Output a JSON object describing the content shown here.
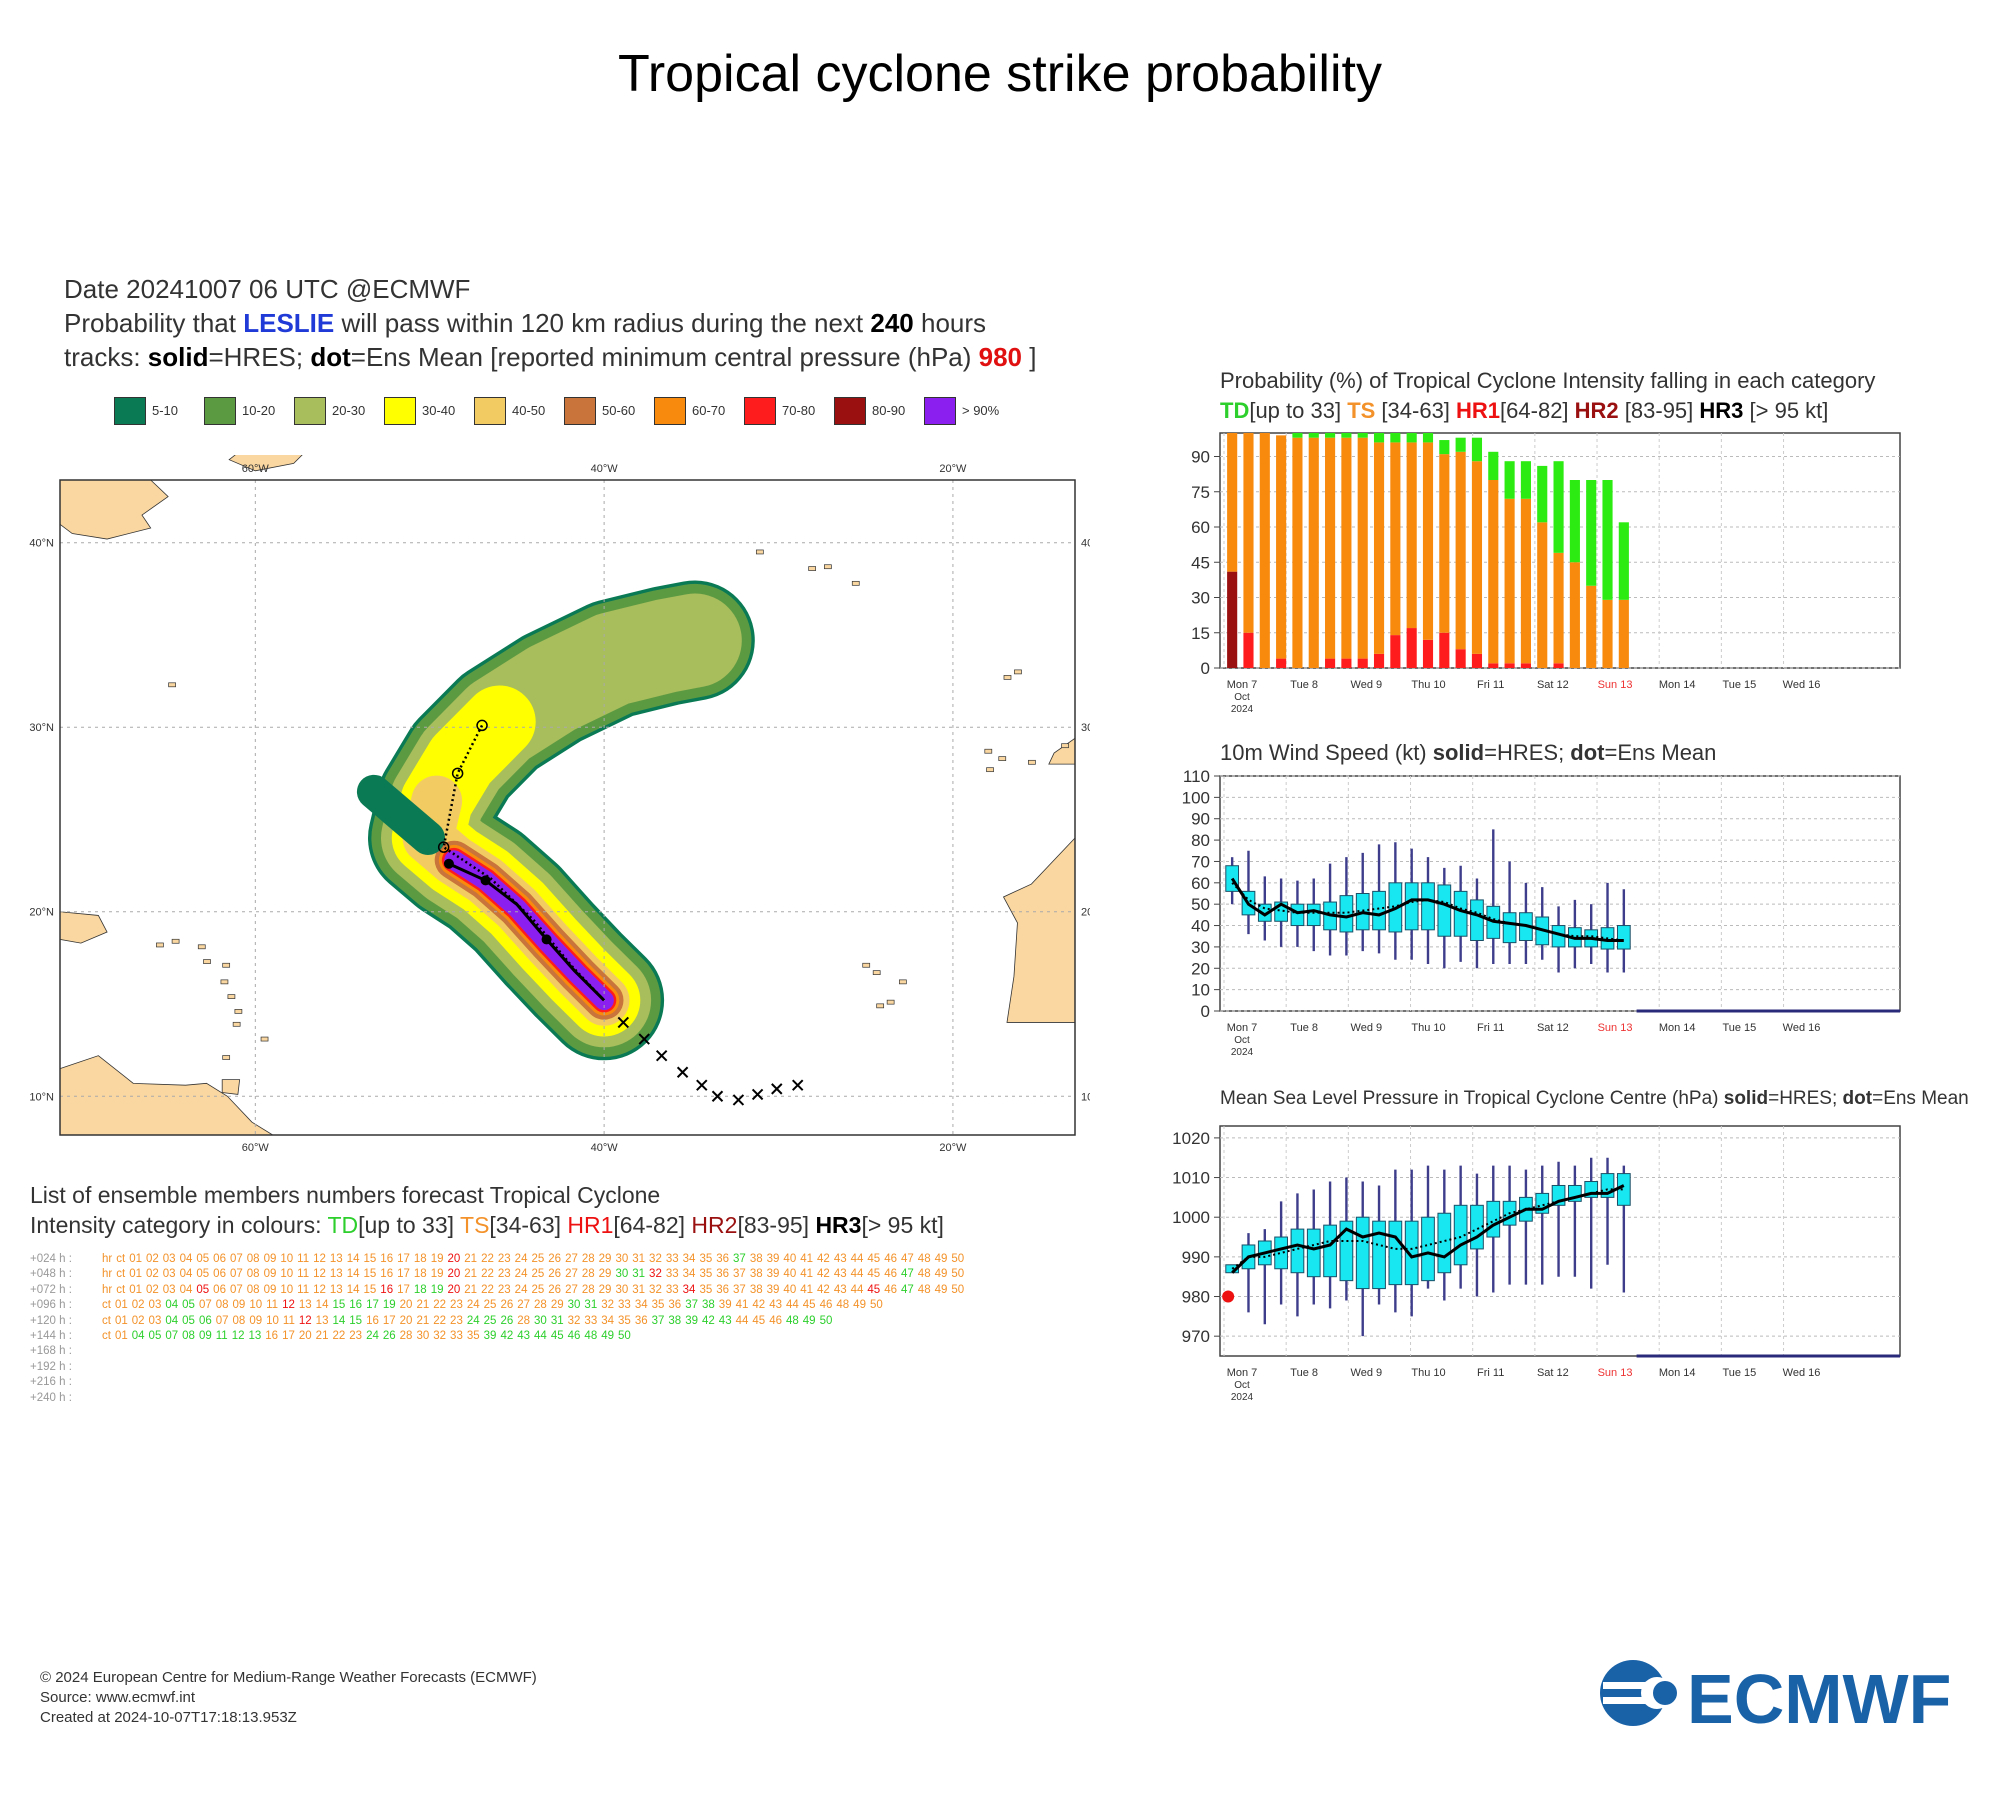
{
  "page_title": "Tropical cyclone strike probability",
  "map_header": {
    "line1": "Date 20241007 06 UTC   @ECMWF",
    "line2_pre": "Probability that ",
    "storm": "LESLIE",
    "line2_mid": " will pass within 120 km radius during the next ",
    "hours": "240",
    "line2_post": " hours",
    "line3_pre": "tracks: ",
    "solid_word": "solid",
    "line3_mid": "=HRES; ",
    "dot_word": "dot",
    "line3_post": "=Ens Mean [reported minimum central pressure (hPa) ",
    "pressure": "980",
    "line3_end": " ]"
  },
  "legend": [
    {
      "label": "5-10",
      "color": "#0a7a55"
    },
    {
      "label": "10-20",
      "color": "#5c9a42"
    },
    {
      "label": "20-30",
      "color": "#a8bd5c"
    },
    {
      "label": "30-40",
      "color": "#ffff00"
    },
    {
      "label": "40-50",
      "color": "#f2cc63"
    },
    {
      "label": "50-60",
      "color": "#c8743a"
    },
    {
      "label": "60-70",
      "color": "#f88a0e"
    },
    {
      "label": "70-80",
      "color": "#ff1c1c"
    },
    {
      "label": "80-90",
      "color": "#9a1010"
    },
    {
      "label": "> 90%",
      "color": "#8b1ff0"
    }
  ],
  "map": {
    "lon_labels_top": [
      "60°W",
      "40°W",
      "20°W"
    ],
    "lon_labels_bottom": [
      "60°W",
      "40°W",
      "20°W"
    ],
    "lat_labels_left": [
      "40°N",
      "30°N",
      "20°N",
      "10°N"
    ],
    "lat_labels_right": [
      "40°N",
      "30°N",
      "20°N",
      "10°N"
    ],
    "land_color": "#fad7a0",
    "hres_track": [
      [
        -40.0,
        15.2
      ],
      [
        -41.7,
        16.8
      ],
      [
        -43.3,
        18.5
      ],
      [
        -45.0,
        20.4
      ],
      [
        -46.8,
        21.7
      ],
      [
        -48.9,
        22.6
      ]
    ],
    "ens_mean_track": [
      [
        -40.0,
        15.2
      ],
      [
        -41.8,
        17.0
      ],
      [
        -44.0,
        19.5
      ],
      [
        -46.5,
        21.8
      ],
      [
        -49.2,
        23.5
      ],
      [
        -48.4,
        27.5
      ],
      [
        -47.0,
        30.1
      ]
    ],
    "hres_points": [
      [
        -43.3,
        18.5
      ],
      [
        -46.8,
        21.7
      ],
      [
        -48.9,
        22.6
      ]
    ],
    "ens_points": [
      [
        -49.2,
        23.5
      ],
      [
        -48.4,
        27.5
      ],
      [
        -47.0,
        30.1
      ]
    ],
    "past_track": [
      [
        -38.9,
        14.0
      ],
      [
        -37.7,
        13.1
      ],
      [
        -36.7,
        12.2
      ],
      [
        -35.5,
        11.3
      ],
      [
        -34.4,
        10.6
      ],
      [
        -33.5,
        10.0
      ],
      [
        -32.3,
        9.8
      ],
      [
        -31.2,
        10.1
      ],
      [
        -30.1,
        10.4
      ],
      [
        -28.9,
        10.6
      ]
    ]
  },
  "ensemble": {
    "header_line1": "List of ensemble members numbers forecast Tropical Cyclone",
    "header_line2_pre": "Intensity category in colours: ",
    "td": "TD",
    "td_range": "[up to 33]  ",
    "ts": "TS",
    "ts_range": "[34-63]  ",
    "hr1": "HR1",
    "hr1_range": "[64-82]  ",
    "hr2": "HR2",
    "hr2_range": "[83-95]  ",
    "hr3": "HR3",
    "hr3_range": "[> 95 kt]",
    "rows": [
      {
        "lead": "+024 h :",
        "cells": "hr ct 01 02 03 04 05 06 07 08 09 10 11 12 13 14 15 16 17 18 19 20 21 22 23 24 25 26 27 28 29 30 31 32 33 34 35 36 37 38 39 40 41 42 43 44 45 46 47 48 49 50",
        "red": [
          "20"
        ],
        "green": [
          "37"
        ]
      },
      {
        "lead": "+048 h :",
        "cells": "hr ct 01 02 03 04 05 06 07 08 09 10 11 12 13 14 15 16 17 18 19 20 21 22 23 24 25 26 27 28 29 30 31 32 33 34 35 36 37 38 39 40 41 42 43 44 45 46 47 48 49 50",
        "red": [
          "20",
          "32"
        ],
        "green": [
          "30",
          "31",
          "47"
        ]
      },
      {
        "lead": "+072 h :",
        "cells": "hr ct 01 02 03 04 05 06 07 08 09 10 11 12 13 14 15 16 17 18 19 20 21 22 23 24 25 26 27 28 29 30 31 32 33 34 35 36 37 38 39 40 41 42 43 44 45 46 47 48 49 50",
        "red": [
          "05",
          "16",
          "20",
          "34",
          "45"
        ],
        "green": [
          "18",
          "19",
          "47"
        ]
      },
      {
        "lead": "+096 h :",
        "cells": "ct 01 02 03 04 05 07 08 09 10 11 12 13 14 15 16 17 19 20 21 22 23 24 25 26 27 28 29 30 31 32 33 34 35 36 37 38 39 41 42 43 44 45 46 48 49 50",
        "red": [
          "12"
        ],
        "green": [
          "04",
          "05",
          "15",
          "16",
          "17",
          "19",
          "30",
          "31",
          "37",
          "38"
        ]
      },
      {
        "lead": "+120 h :",
        "cells": "ct 01 02 03 04 05 06 07 08 09 10 11 12 13 14 15 16 17 20 21 22 23 24 25 26 28 30 31 32 33 34 35 36 37 38 39 42 43 44 45 46 48 49 50",
        "red": [
          "12"
        ],
        "green": [
          "04",
          "05",
          "06",
          "14",
          "15",
          "24",
          "25",
          "26",
          "30",
          "31",
          "37",
          "38",
          "39",
          "42",
          "43",
          "48",
          "49",
          "50"
        ]
      },
      {
        "lead": "+144 h :",
        "cells": "ct 01 04 05 07 08 09 11 12 13 16 17 20 21 22 23 24 26 28 30 32 33 35 39 42 43 44 45 46 48 49 50",
        "red": [],
        "green": [
          "04",
          "05",
          "07",
          "08",
          "09",
          "11",
          "12",
          "13",
          "24",
          "26",
          "39",
          "42",
          "43",
          "44",
          "45",
          "46",
          "48",
          "49",
          "50"
        ]
      },
      {
        "lead": "+168 h :",
        "cells": "",
        "red": [],
        "green": []
      },
      {
        "lead": "+192 h :",
        "cells": "",
        "red": [],
        "green": []
      },
      {
        "lead": "+216 h :",
        "cells": "",
        "red": [],
        "green": []
      },
      {
        "lead": "+240 h :",
        "cells": "",
        "red": [],
        "green": []
      }
    ]
  },
  "panel1": {
    "title_line1": "Probability (%) of Tropical Cyclone Intensity falling in each category",
    "td": "TD",
    "td_range": "[up to 33]  ",
    "ts": "TS",
    "ts_range": " [34-63]  ",
    "hr1": "HR1",
    "hr1_range": "[64-82]  ",
    "hr2": "HR2",
    "hr2_range": " [83-95]  ",
    "hr3": "HR3",
    "hr3_range": " [> 95 kt]"
  },
  "panel2": {
    "title_pre": "10m Wind Speed (kt) ",
    "solid": "solid",
    "mid": "=HRES; ",
    "dot": "dot",
    "post": "=Ens Mean"
  },
  "panel3": {
    "title_pre": "Mean Sea Level Pressure in Tropical Cyclone Centre (hPa) ",
    "solid": "solid",
    "mid": "=HRES; ",
    "dot": "dot",
    "post": "=Ens Mean"
  },
  "chart_data": [
    {
      "type": "bar",
      "title": "Probability (%) of Tropical Cyclone Intensity falling in each category",
      "ylim": [
        0,
        100
      ],
      "yticks": [
        0,
        15,
        30,
        45,
        60,
        75,
        90
      ],
      "x_day_labels": [
        "Mon 7",
        "Tue 8",
        "Wed 9",
        "Thu 10",
        "Fri 11",
        "Sat 12",
        "Sun 13",
        "Mon 14",
        "Tue 15",
        "Wed 16"
      ],
      "x_sub_labels": [
        "Oct",
        "2024"
      ],
      "series": [
        {
          "name": "HR2",
          "color": "#9a1010",
          "values": [
            41,
            0,
            0,
            0,
            0,
            0,
            0,
            0,
            0,
            0,
            0,
            0,
            0,
            0,
            0,
            0,
            0,
            0,
            0,
            0,
            0,
            0,
            0,
            0,
            0
          ]
        },
        {
          "name": "HR1",
          "color": "#ff1c1c",
          "values": [
            0,
            15,
            0,
            4,
            0,
            0,
            4,
            4,
            4,
            6,
            14,
            17,
            12,
            15,
            8,
            6,
            2,
            2,
            2,
            0,
            2,
            0,
            0,
            0,
            0
          ]
        },
        {
          "name": "TS",
          "color": "#f88a0e",
          "values": [
            59,
            85,
            100,
            95,
            98,
            98,
            94,
            94,
            94,
            90,
            82,
            79,
            84,
            76,
            84,
            82,
            78,
            70,
            70,
            62,
            47,
            45,
            35,
            29,
            29
          ]
        },
        {
          "name": "TD",
          "color": "#2ceb12",
          "values": [
            0,
            0,
            0,
            0,
            2,
            2,
            2,
            2,
            2,
            4,
            4,
            4,
            4,
            6,
            6,
            10,
            12,
            16,
            16,
            24,
            39,
            35,
            45,
            51,
            33
          ]
        }
      ]
    },
    {
      "type": "line",
      "title": "10m Wind Speed (kt)",
      "ylim": [
        0,
        110
      ],
      "yticks": [
        0,
        10,
        20,
        30,
        40,
        50,
        60,
        70,
        80,
        90,
        100,
        110
      ],
      "hres": [
        62,
        50,
        45,
        50,
        46,
        47,
        45,
        44,
        46,
        45,
        48,
        52,
        52,
        50,
        47,
        45,
        42,
        41,
        40,
        38,
        36,
        34,
        34,
        33,
        33
      ],
      "ens_mean": [
        60,
        52,
        48,
        47,
        46,
        46,
        46,
        46,
        47,
        48,
        49,
        51,
        52,
        51,
        48,
        46,
        43,
        41,
        40,
        38,
        36,
        35,
        35,
        34,
        33
      ],
      "box_low": [
        56,
        45,
        42,
        42,
        40,
        40,
        38,
        37,
        38,
        38,
        37,
        38,
        38,
        35,
        35,
        33,
        34,
        32,
        33,
        31,
        30,
        30,
        30,
        29,
        29
      ],
      "box_high": [
        68,
        56,
        50,
        51,
        50,
        50,
        51,
        54,
        55,
        56,
        60,
        60,
        60,
        59,
        56,
        52,
        49,
        46,
        46,
        44,
        40,
        39,
        38,
        39,
        40
      ],
      "whisk_low": [
        50,
        36,
        33,
        30,
        30,
        28,
        26,
        26,
        28,
        27,
        24,
        24,
        22,
        20,
        23,
        20,
        22,
        22,
        22,
        24,
        18,
        20,
        22,
        18,
        18
      ],
      "whisk_high": [
        72,
        75,
        63,
        62,
        61,
        62,
        69,
        72,
        74,
        78,
        79,
        76,
        72,
        67,
        68,
        62,
        85,
        70,
        60,
        58,
        49,
        52,
        50,
        60,
        57
      ]
    },
    {
      "type": "line",
      "title": "Mean Sea Level Pressure in Tropical Cyclone Centre (hPa)",
      "ylim": [
        965,
        1023
      ],
      "yticks": [
        970,
        980,
        990,
        1000,
        1010,
        1020
      ],
      "reported_minimum_pressure": 980,
      "hres": [
        986,
        990,
        991,
        992,
        993,
        992,
        993,
        997,
        995,
        996,
        995,
        990,
        991,
        990,
        993,
        995,
        998,
        1000,
        1002,
        1002,
        1004,
        1005,
        1006,
        1006,
        1008
      ],
      "ens_mean": [
        987,
        990,
        990,
        991,
        992,
        993,
        994,
        994,
        994,
        993,
        992,
        992,
        993,
        994,
        995,
        997,
        999,
        1001,
        1002,
        1003,
        1004,
        1005,
        1006,
        1007,
        1007
      ],
      "box_low": [
        986,
        987,
        988,
        987,
        986,
        985,
        985,
        984,
        982,
        982,
        983,
        983,
        984,
        986,
        988,
        992,
        995,
        998,
        999,
        1001,
        1003,
        1004,
        1005,
        1005,
        1003
      ],
      "box_high": [
        988,
        993,
        994,
        995,
        997,
        997,
        998,
        999,
        1000,
        999,
        999,
        999,
        1000,
        1001,
        1003,
        1003,
        1004,
        1004,
        1005,
        1006,
        1008,
        1008,
        1009,
        1011,
        1011
      ],
      "whisk_low": [
        986,
        976,
        973,
        978,
        975,
        978,
        977,
        979,
        970,
        978,
        976,
        975,
        982,
        979,
        982,
        980,
        981,
        983,
        983,
        983,
        985,
        985,
        982,
        988,
        981
      ],
      "whisk_high": [
        988,
        996,
        997,
        1004,
        1006,
        1007,
        1009,
        1010,
        1009,
        1008,
        1012,
        1012,
        1013,
        1012,
        1013,
        1011,
        1013,
        1013,
        1012,
        1013,
        1014,
        1013,
        1015,
        1015,
        1013
      ]
    }
  ],
  "footer": {
    "line1": "© 2024 European Centre for Medium-Range Weather Forecasts (ECMWF)",
    "line2": "Source: www.ecmwf.int",
    "line3": "Created at 2024-10-07T17:18:13.953Z"
  },
  "logo_text": "ECMWF",
  "logo_color": "#1a62a8"
}
